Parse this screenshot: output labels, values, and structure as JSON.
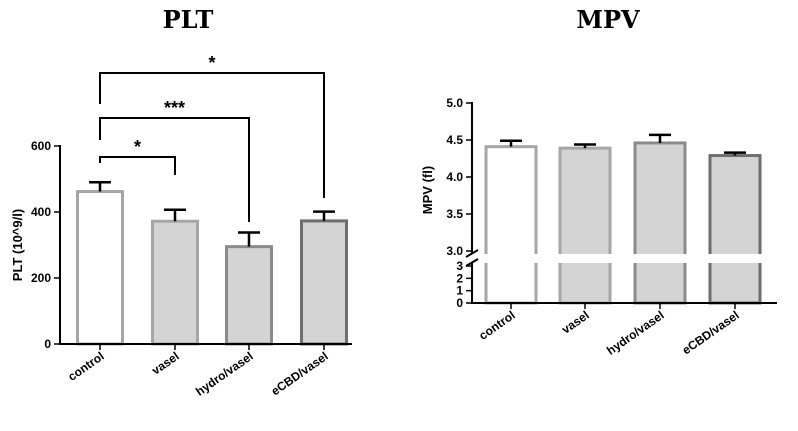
{
  "chart_data": [
    {
      "type": "bar",
      "title": "PLT",
      "ylabel": "PLT (10^9/l)",
      "categories": [
        "control",
        "vasel",
        "hydro/vasel",
        "eCBD/vasel"
      ],
      "values": [
        462,
        372,
        295,
        373
      ],
      "errors": [
        28,
        35,
        43,
        28
      ],
      "ylim": [
        0,
        600
      ],
      "yticks": [
        "0",
        "200",
        "400",
        "600"
      ],
      "significance": [
        {
          "from": "control",
          "to": "vasel",
          "label": "*"
        },
        {
          "from": "control",
          "to": "hydro/vasel",
          "label": "***"
        },
        {
          "from": "control",
          "to": "eCBD/vasel",
          "label": "*"
        }
      ],
      "colors": {
        "control_fill": "#ffffff",
        "control_edge": "#a6a6a6",
        "bar_fill": "#d4d4d4",
        "vasel_edge": "#a6a6a6",
        "hydro_edge": "#8a8a8a",
        "ecbd_edge": "#6e6e6e"
      }
    },
    {
      "type": "bar",
      "title": "MPV",
      "ylabel": "MPV (fl)",
      "categories": [
        "control",
        "vasel",
        "hydro/vasel",
        "eCBD/vasel"
      ],
      "values": [
        4.41,
        4.39,
        4.46,
        4.29
      ],
      "errors": [
        0.08,
        0.05,
        0.11,
        0.04
      ],
      "y_axis_break": true,
      "lower_ylim": [
        0,
        3
      ],
      "lower_yticks": [
        "0",
        "1",
        "2",
        "3"
      ],
      "upper_ylim": [
        3.0,
        5.0
      ],
      "upper_yticks": [
        "3.0",
        "3.5",
        "4.0",
        "4.5",
        "5.0"
      ],
      "colors": {
        "control_fill": "#ffffff",
        "control_edge": "#a6a6a6",
        "bar_fill": "#d4d4d4",
        "vasel_edge": "#a6a6a6",
        "hydro_edge": "#8a8a8a",
        "ecbd_edge": "#6e6e6e"
      }
    }
  ]
}
